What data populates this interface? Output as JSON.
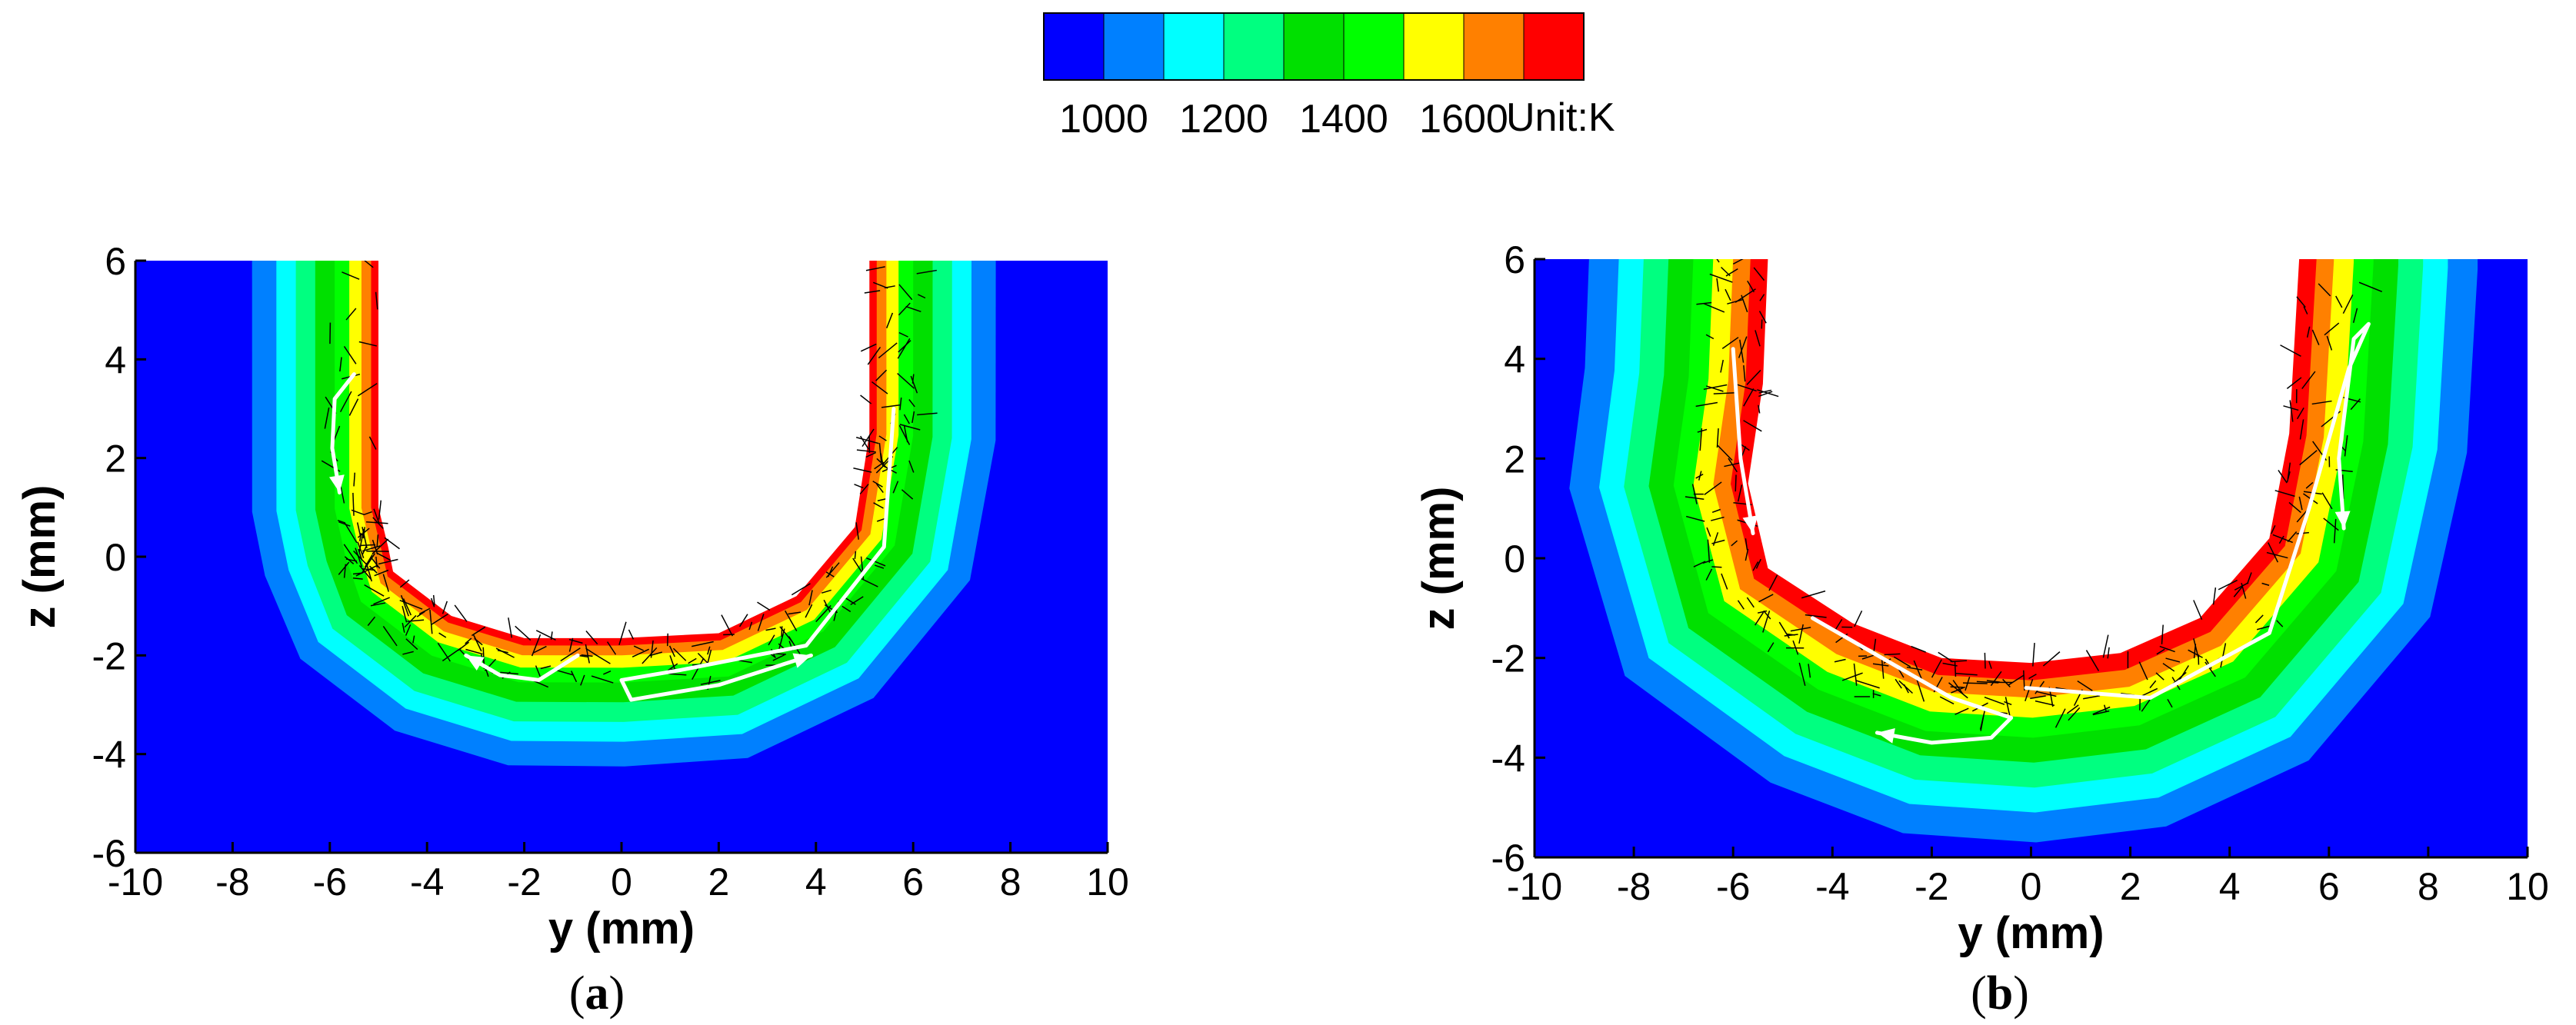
{
  "colorbar": {
    "colors": [
      "#0000ff",
      "#0080ff",
      "#00ffff",
      "#00ff80",
      "#00e000",
      "#00ff00",
      "#ffff00",
      "#ff8000",
      "#ff0000"
    ],
    "tick_labels": [
      "1000",
      "1200",
      "1400",
      "1600"
    ],
    "tick_values": [
      1000,
      1200,
      1400,
      1600
    ],
    "unit_label": "Unit:K"
  },
  "chart_data": [
    {
      "type": "heatmap",
      "panel_label": "(a)",
      "caption_letter": "a",
      "xlabel": "y (mm)",
      "ylabel": "z (mm)",
      "xlim": [
        -10,
        10
      ],
      "ylim": [
        -6,
        6
      ],
      "x_ticks": [
        -10,
        -8,
        -6,
        -4,
        -2,
        0,
        2,
        4,
        6,
        8,
        10
      ],
      "y_ticks": [
        -6,
        -4,
        -2,
        0,
        2,
        4,
        6
      ],
      "x_tick_labels": [
        "-10",
        "-8",
        "-6",
        "-4",
        "-2",
        "0",
        "2",
        "4",
        "6",
        "8",
        "10"
      ],
      "y_tick_labels": [
        "-6",
        "-4",
        "-2",
        "0",
        "2",
        "4",
        "6"
      ],
      "cavity_boundary": [
        [
          -5.0,
          6
        ],
        [
          -5.0,
          1.0
        ],
        [
          -4.8,
          0.2
        ],
        [
          -4.7,
          -0.3
        ],
        [
          -3.5,
          -1.2
        ],
        [
          -2.0,
          -1.65
        ],
        [
          0,
          -1.65
        ],
        [
          2.0,
          -1.55
        ],
        [
          3.6,
          -0.8
        ],
        [
          4.8,
          0.6
        ],
        [
          5.1,
          2.5
        ],
        [
          5.1,
          6
        ]
      ],
      "max_depth_mm": -3.5,
      "isotherm_offsets_mm": [
        0.15,
        0.35,
        0.6,
        0.9,
        1.3,
        1.7,
        2.1,
        2.6
      ],
      "flow_arrows": [
        [
          [
            -5.5,
            3.7
          ],
          [
            -5.9,
            3.2
          ],
          [
            -5.95,
            2.2
          ],
          [
            -5.8,
            1.3
          ]
        ],
        [
          [
            -0.9,
            -2.0
          ],
          [
            -1.7,
            -2.5
          ],
          [
            -2.5,
            -2.4
          ],
          [
            -3.2,
            -2.0
          ]
        ],
        [
          [
            5.6,
            3.0
          ],
          [
            5.4,
            0.2
          ],
          [
            3.8,
            -1.8
          ],
          [
            1.2,
            -2.3
          ],
          [
            0.0,
            -2.5
          ],
          [
            0.2,
            -2.9
          ],
          [
            2.0,
            -2.6
          ],
          [
            3.9,
            -2.0
          ]
        ]
      ]
    },
    {
      "type": "heatmap",
      "panel_label": "(b)",
      "caption_letter": "b",
      "xlabel": "y (mm)",
      "ylabel": "z (mm)",
      "xlim": [
        -10,
        10
      ],
      "ylim": [
        -6,
        6
      ],
      "x_ticks": [
        -10,
        -8,
        -6,
        -4,
        -2,
        0,
        2,
        4,
        6,
        8,
        10
      ],
      "y_ticks": [
        -6,
        -4,
        -2,
        0,
        2,
        4,
        6
      ],
      "x_tick_labels": [
        "-10",
        "-8",
        "-6",
        "-4",
        "-2",
        "0",
        "2",
        "4",
        "6",
        "8",
        "10"
      ],
      "y_tick_labels": [
        "-6",
        "-4",
        "-2",
        "0",
        "2",
        "4",
        "6"
      ],
      "cavity_boundary": [
        [
          -5.3,
          6
        ],
        [
          -5.4,
          3.5
        ],
        [
          -5.7,
          1.5
        ],
        [
          -5.3,
          -0.2
        ],
        [
          -3.6,
          -1.3
        ],
        [
          -1.8,
          -2.0
        ],
        [
          0,
          -2.1
        ],
        [
          1.8,
          -1.9
        ],
        [
          3.4,
          -1.2
        ],
        [
          4.8,
          0.4
        ],
        [
          5.2,
          2.5
        ],
        [
          5.4,
          6
        ]
      ],
      "max_depth_mm": -4.5,
      "isotherm_offsets_mm": [
        0.35,
        0.7,
        1.1,
        1.5,
        2.0,
        2.5,
        3.0,
        3.6
      ],
      "flow_arrows": [
        [
          [
            -6.0,
            4.2
          ],
          [
            -5.85,
            2.0
          ],
          [
            -5.6,
            0.5
          ]
        ],
        [
          [
            -4.4,
            -1.2
          ],
          [
            -3.0,
            -2.0
          ],
          [
            -1.6,
            -2.8
          ],
          [
            -0.4,
            -3.2
          ],
          [
            -0.8,
            -3.6
          ],
          [
            -2.0,
            -3.7
          ],
          [
            -3.1,
            -3.5
          ]
        ],
        [
          [
            -0.1,
            -2.6
          ],
          [
            2.4,
            -2.8
          ],
          [
            4.8,
            -1.5
          ],
          [
            5.6,
            1.0
          ],
          [
            6.4,
            3.8
          ],
          [
            6.8,
            4.7
          ],
          [
            6.5,
            4.4
          ],
          [
            6.2,
            2.0
          ],
          [
            6.3,
            0.6
          ]
        ]
      ]
    }
  ]
}
